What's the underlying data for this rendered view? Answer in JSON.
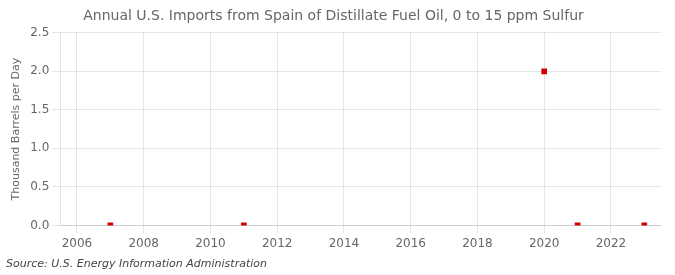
{
  "chart_data": {
    "type": "scatter",
    "title": "Annual U.S. Imports from Spain of Distillate Fuel Oil, 0 to 15 ppm Sulfur",
    "y_label": "Thousand Barrels per Day",
    "annotation": "Source: U.S. Energy Information Administration",
    "x": [
      2007,
      2011,
      2020,
      2021,
      2023
    ],
    "values": [
      0.0,
      0.0,
      2.0,
      0.0,
      0.0
    ],
    "color": "#cc0000",
    "marker": "square",
    "xlim": [
      2005.5,
      2023.5
    ],
    "xticks": [
      2006,
      2008,
      2010,
      2012,
      2014,
      2016,
      2018,
      2020,
      2022
    ],
    "ylim": [
      0.0,
      2.5
    ],
    "yticks": [
      {
        "value": 0.0,
        "label": "0.0"
      },
      0.5,
      {
        "value": 1.0,
        "label": "1.0"
      },
      1.5,
      {
        "value": 2.0,
        "label": "2.0"
      },
      2.5
    ],
    "grid": true
  }
}
